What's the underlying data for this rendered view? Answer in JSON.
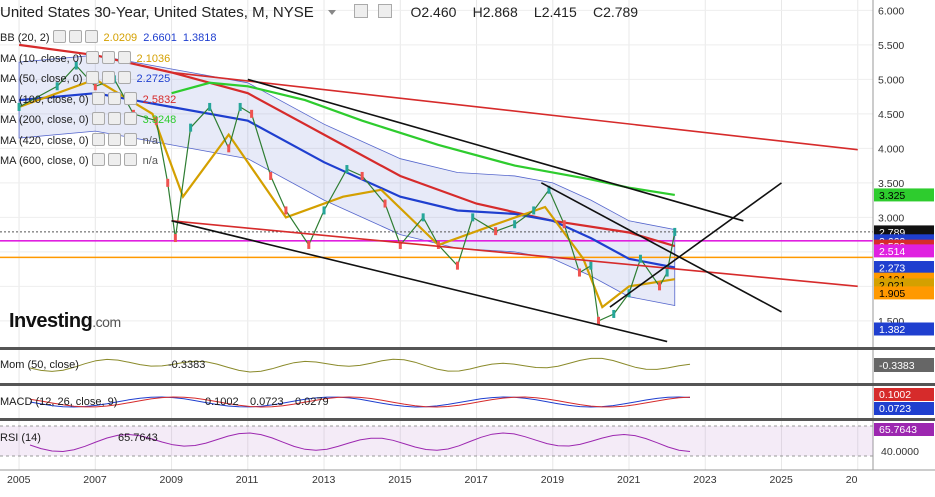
{
  "header": {
    "title": "United States 30-Year, United States, M, NYSE",
    "open_label": "O",
    "open": "2.460",
    "high_label": "H",
    "high": "2.868",
    "low_label": "L",
    "low": "2.415",
    "close_label": "C",
    "close": "2.789"
  },
  "legend": [
    {
      "label": "BB (20, 2)",
      "values": [
        "2.0209",
        "2.6601",
        "1.3818"
      ],
      "colors": [
        "#d4a000",
        "#1f3fcf",
        "#1f3fcf"
      ]
    },
    {
      "label": "MA (10, close, 0)",
      "values": [
        "2.1036"
      ],
      "colors": [
        "#d4a000"
      ]
    },
    {
      "label": "MA (50, close, 0)",
      "values": [
        "2.2725"
      ],
      "colors": [
        "#1f3fcf"
      ]
    },
    {
      "label": "MA (100, close, 0)",
      "values": [
        "2.5832"
      ],
      "colors": [
        "#d62b2b"
      ]
    },
    {
      "label": "MA (200, close, 0)",
      "values": [
        "3.3248"
      ],
      "colors": [
        "#2ecc2e"
      ]
    },
    {
      "label": "MA (420, close, 0)",
      "values": [
        "n/a"
      ],
      "colors": [
        "#555555"
      ]
    },
    {
      "label": "MA (600, close, 0)",
      "values": [
        "n/a"
      ],
      "colors": [
        "#555555"
      ]
    }
  ],
  "logo": {
    "brand": "Investing",
    "suffix": ".com"
  },
  "indicators": {
    "mom": {
      "label": "Mom (50, close)",
      "value": "-0.3383"
    },
    "macd": {
      "label": "MACD (12, 26, close, 9)",
      "values": [
        "0.1002",
        "0.0723",
        "0.0279"
      ]
    },
    "rsi": {
      "label": "RSI (14)",
      "value": "65.7643",
      "level": "40.0000"
    }
  },
  "colors": {
    "accent": "#1f3fcf",
    "ma100": "#d62b2b",
    "ma200": "#2ecc2e",
    "ma10": "#d4a000",
    "magenta": "#e020e0",
    "orange": "#ff9900"
  },
  "chart_data": {
    "type": "line",
    "title": "United States 30-Year, United States, M, NYSE",
    "x_ticks": [
      "2005",
      "2007",
      "2009",
      "2011",
      "2013",
      "2015",
      "2017",
      "2019",
      "2021",
      "2023",
      "2025",
      "20"
    ],
    "y_ticks": [
      "1.500",
      "2.000",
      "2.500",
      "3.000",
      "3.500",
      "4.000",
      "4.500",
      "5.000",
      "5.500",
      "6.000"
    ],
    "ylim": [
      1.15,
      6.15
    ],
    "price_series": {
      "name": "close",
      "x": [
        2005.0,
        2006.0,
        2006.5,
        2007.0,
        2007.5,
        2008.0,
        2008.6,
        2008.9,
        2009.1,
        2009.5,
        2010.0,
        2010.5,
        2010.8,
        2011.1,
        2011.6,
        2012.0,
        2012.6,
        2013.0,
        2013.6,
        2014.0,
        2014.6,
        2015.0,
        2015.6,
        2016.0,
        2016.5,
        2016.9,
        2017.5,
        2018.0,
        2018.5,
        2018.9,
        2019.3,
        2019.7,
        2020.0,
        2020.2,
        2020.6,
        2021.0,
        2021.3,
        2021.8,
        2022.0,
        2022.2
      ],
      "y": [
        4.6,
        4.9,
        5.2,
        4.9,
        5.0,
        4.5,
        4.4,
        3.5,
        2.7,
        4.3,
        4.6,
        4.0,
        4.6,
        4.5,
        3.6,
        3.1,
        2.6,
        3.1,
        3.7,
        3.6,
        3.2,
        2.6,
        3.0,
        2.6,
        2.3,
        3.0,
        2.8,
        2.9,
        3.1,
        3.4,
        2.9,
        2.2,
        2.3,
        1.5,
        1.6,
        1.9,
        2.4,
        2.0,
        2.2,
        2.789
      ]
    },
    "series": [
      {
        "name": "MA (100, close, 0)",
        "color": "#d62b2b",
        "x": [
          2005.0,
          2007.0,
          2009.0,
          2011.0,
          2013.0,
          2015.0,
          2017.0,
          2019.0,
          2021.0,
          2022.2
        ],
        "y": [
          5.5,
          5.35,
          5.1,
          4.8,
          4.2,
          3.6,
          3.2,
          2.95,
          2.78,
          2.583
        ]
      },
      {
        "name": "MA (200, close, 0)",
        "color": "#2ecc2e",
        "x": [
          2009.0,
          2010.0,
          2011.0,
          2012.5,
          2014.0,
          2016.0,
          2018.0,
          2020.0,
          2021.0,
          2022.2
        ],
        "y": [
          4.8,
          4.95,
          4.9,
          4.7,
          4.4,
          4.05,
          3.75,
          3.55,
          3.43,
          3.325
        ]
      },
      {
        "name": "MA (50, close, 0)",
        "color": "#1f3fcf",
        "x": [
          2005.0,
          2007.0,
          2009.0,
          2011.0,
          2013.0,
          2015.0,
          2016.5,
          2018.0,
          2019.0,
          2020.0,
          2021.0,
          2022.2
        ],
        "y": [
          4.7,
          4.8,
          4.6,
          4.4,
          3.8,
          3.3,
          3.1,
          3.05,
          2.95,
          2.7,
          2.4,
          2.273
        ]
      },
      {
        "name": "MA (10, close, 0)",
        "color": "#d4a000",
        "x": [
          2005.0,
          2007.0,
          2008.5,
          2009.3,
          2010.5,
          2012.0,
          2013.5,
          2014.5,
          2016.0,
          2017.5,
          2018.8,
          2019.8,
          2020.3,
          2021.0,
          2022.2
        ],
        "y": [
          4.6,
          5.0,
          4.5,
          3.3,
          4.2,
          3.0,
          3.3,
          3.4,
          2.6,
          2.9,
          3.15,
          2.4,
          1.7,
          2.0,
          2.104
        ]
      }
    ],
    "horizontal_lines": [
      {
        "value": 2.66,
        "color": "#e020e0"
      },
      {
        "value": 2.42,
        "color": "#ff9900"
      },
      {
        "value": 2.789,
        "color": "#555555",
        "style": "dotted"
      }
    ],
    "trend_lines": [
      {
        "color": "#d62b2b",
        "from": [
          2009.0,
          5.1
        ],
        "to": [
          2027.0,
          3.98
        ]
      },
      {
        "color": "#d62b2b",
        "from": [
          2009.0,
          2.95
        ],
        "to": [
          2027.0,
          2.0
        ]
      },
      {
        "color": "#111111",
        "from": [
          2011.0,
          5.0
        ],
        "to": [
          2024.0,
          2.95
        ]
      },
      {
        "color": "#111111",
        "from": [
          2009.0,
          2.95
        ],
        "to": [
          2022.0,
          1.2
        ]
      },
      {
        "color": "#111111",
        "from": [
          2018.7,
          3.5
        ],
        "to": [
          2025.0,
          1.63
        ]
      },
      {
        "color": "#111111",
        "from": [
          2020.5,
          1.7
        ],
        "to": [
          2025.0,
          3.5
        ]
      }
    ],
    "price_tags": [
      {
        "value": "3.325",
        "bg": "#2ecc2e",
        "fg": "#000000",
        "y": 3.325
      },
      {
        "value": "2.789",
        "bg": "#111111",
        "fg": "#ffffff",
        "y": 2.789
      },
      {
        "value": "2.660",
        "bg": "#1f3fcf",
        "fg": "#ffffff",
        "y": 2.66
      },
      {
        "value": "2.583",
        "bg": "#d62b2b",
        "fg": "#ffffff",
        "y": 2.583
      },
      {
        "value": "2.514",
        "bg": "#e020e0",
        "fg": "#ffffff",
        "y": 2.514
      },
      {
        "value": "2.273",
        "bg": "#1f3fcf",
        "fg": "#ffffff",
        "y": 2.273
      },
      {
        "value": "2.104",
        "bg": "#ff9900",
        "fg": "#000000",
        "y": 2.104
      },
      {
        "value": "2.021",
        "bg": "#d4a000",
        "fg": "#000000",
        "y": 2.021
      },
      {
        "value": "1.905",
        "bg": "#ff9900",
        "fg": "#000000",
        "y": 1.905
      },
      {
        "value": "1.382",
        "bg": "#1f3fcf",
        "fg": "#ffffff",
        "y": 1.382
      }
    ],
    "x_range": [
      2004.5,
      2027.4
    ]
  }
}
